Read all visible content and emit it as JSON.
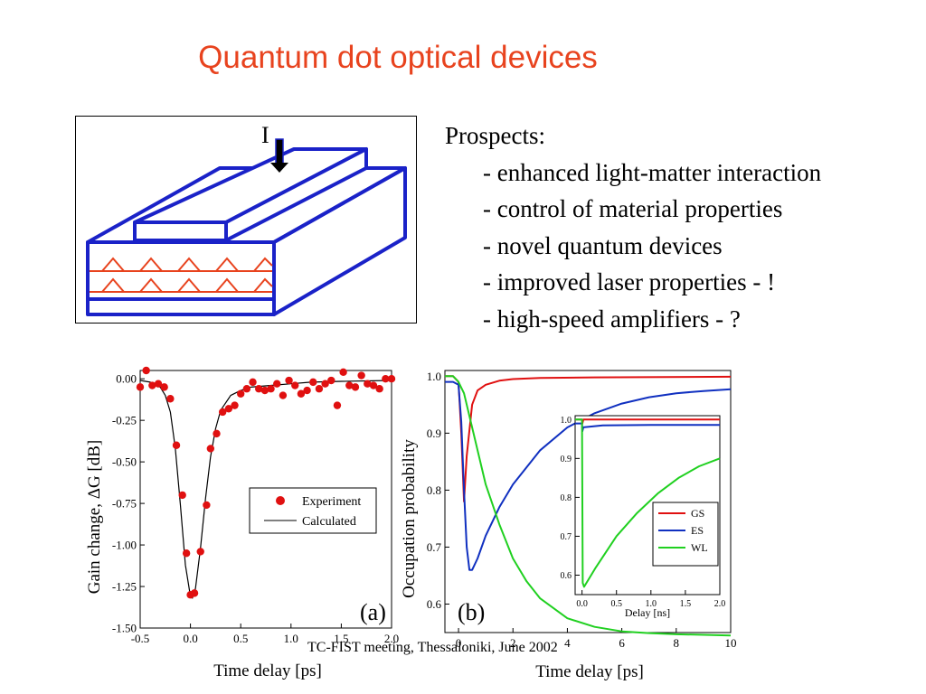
{
  "slide": {
    "title": "Quantum dot optical devices",
    "prospects": {
      "heading": "Prospects:",
      "items": [
        "- enhanced light-matter interaction",
        "- control of material properties",
        "- novel quantum devices",
        "- improved laser properties - !",
        "- high-speed amplifiers - ?"
      ]
    },
    "device": {
      "current_label": "I"
    },
    "footer": "TC-FIST meeting, Thessaloniki, June 2002"
  },
  "colors": {
    "title": "#e8431e",
    "device_outline": "#1a22c8",
    "dot_layers": "#e8431e",
    "experiment": "#e01010",
    "gs": "#e01010",
    "es": "#1030c0",
    "wl": "#20d020"
  },
  "chart_data": [
    {
      "type": "scatter",
      "panel_label": "(a)",
      "xlabel": "Time delay [ps]",
      "ylabel": "Gain change, ΔG [dB]",
      "xlim": [
        -0.5,
        2.0
      ],
      "ylim": [
        -1.5,
        0.05
      ],
      "xticks": [
        -0.5,
        0.0,
        0.5,
        1.0,
        1.5,
        2.0
      ],
      "xtick_labels": [
        "-0.5",
        "0.0",
        "0.5",
        "1.0",
        "1.5",
        "2.0"
      ],
      "yticks": [
        0.0,
        -0.25,
        -0.5,
        -0.75,
        -1.0,
        -1.25,
        -1.5
      ],
      "ytick_labels": [
        "0.00",
        "-0.25",
        "-0.50",
        "-0.75",
        "-1.00",
        "-1.25",
        "-1.50"
      ],
      "legend": {
        "placement": "right",
        "entries": [
          "Experiment",
          "Calculated"
        ]
      },
      "series": [
        {
          "name": "Experiment",
          "x": [
            -0.5,
            -0.44,
            -0.38,
            -0.32,
            -0.26,
            -0.2,
            -0.14,
            -0.08,
            -0.04,
            0.0,
            0.04,
            0.1,
            0.16,
            0.2,
            0.26,
            0.32,
            0.38,
            0.44,
            0.5,
            0.56,
            0.62,
            0.68,
            0.74,
            0.8,
            0.86,
            0.92,
            0.98,
            1.04,
            1.1,
            1.16,
            1.22,
            1.28,
            1.34,
            1.4,
            1.46,
            1.52,
            1.58,
            1.64,
            1.7,
            1.76,
            1.82,
            1.88,
            1.94,
            2.0
          ],
          "y": [
            -0.05,
            0.05,
            -0.04,
            -0.03,
            -0.05,
            -0.12,
            -0.4,
            -0.7,
            -1.05,
            -1.3,
            -1.29,
            -1.04,
            -0.76,
            -0.42,
            -0.33,
            -0.2,
            -0.18,
            -0.16,
            -0.09,
            -0.06,
            -0.02,
            -0.06,
            -0.07,
            -0.06,
            -0.03,
            -0.1,
            -0.01,
            -0.04,
            -0.09,
            -0.07,
            -0.02,
            -0.06,
            -0.03,
            -0.01,
            -0.16,
            0.04,
            -0.04,
            -0.05,
            0.02,
            -0.03,
            -0.04,
            -0.06,
            0.0,
            0.0
          ]
        },
        {
          "name": "Calculated",
          "x": [
            -0.5,
            -0.4,
            -0.3,
            -0.25,
            -0.2,
            -0.15,
            -0.1,
            -0.05,
            0.0,
            0.02,
            0.05,
            0.1,
            0.15,
            0.2,
            0.25,
            0.3,
            0.4,
            0.5,
            0.6,
            0.8,
            1.0,
            1.2,
            1.5,
            2.0
          ],
          "y": [
            -0.01,
            -0.02,
            -0.05,
            -0.1,
            -0.2,
            -0.42,
            -0.76,
            -1.12,
            -1.31,
            -1.32,
            -1.26,
            -1.02,
            -0.72,
            -0.47,
            -0.3,
            -0.19,
            -0.1,
            -0.07,
            -0.05,
            -0.04,
            -0.03,
            -0.02,
            -0.015,
            -0.01
          ]
        }
      ]
    },
    {
      "type": "line",
      "panel_label": "(b)",
      "xlabel": "Time delay [ps]",
      "ylabel": "Occupation probability",
      "xlim": [
        -0.5,
        10
      ],
      "ylim": [
        0.55,
        1.01
      ],
      "xticks": [
        0,
        2,
        4,
        6,
        8,
        10
      ],
      "xtick_labels": [
        "0",
        "2",
        "4",
        "6",
        "8",
        "10"
      ],
      "yticks": [
        0.6,
        0.7,
        0.8,
        0.9,
        1.0
      ],
      "ytick_labels": [
        "0.6",
        "0.7",
        "0.8",
        "0.9",
        "1.0"
      ],
      "legend": {
        "placement": "inset",
        "entries": []
      },
      "series": [
        {
          "name": "GS",
          "x": [
            -0.5,
            -0.2,
            0.0,
            0.1,
            0.2,
            0.3,
            0.5,
            0.7,
            1.0,
            1.5,
            2.0,
            3.0,
            5.0,
            10.0
          ],
          "y": [
            1.0,
            1.0,
            0.99,
            0.9,
            0.78,
            0.86,
            0.95,
            0.975,
            0.985,
            0.992,
            0.995,
            0.997,
            0.998,
            0.999
          ]
        },
        {
          "name": "ES",
          "x": [
            -0.5,
            -0.2,
            0.0,
            0.1,
            0.2,
            0.3,
            0.4,
            0.5,
            0.7,
            1.0,
            1.5,
            2.0,
            3.0,
            4.0,
            5.0,
            6.0,
            7.0,
            8.0,
            9.0,
            10.0
          ],
          "y": [
            0.99,
            0.99,
            0.985,
            0.92,
            0.8,
            0.7,
            0.66,
            0.66,
            0.68,
            0.72,
            0.77,
            0.81,
            0.87,
            0.91,
            0.935,
            0.952,
            0.963,
            0.97,
            0.974,
            0.977
          ]
        },
        {
          "name": "WL",
          "x": [
            -0.5,
            -0.2,
            0.0,
            0.2,
            0.5,
            1.0,
            1.5,
            2.0,
            2.5,
            3.0,
            4.0,
            5.0,
            6.0,
            7.0,
            8.0,
            9.0,
            10.0
          ],
          "y": [
            1.0,
            1.0,
            0.99,
            0.97,
            0.91,
            0.81,
            0.74,
            0.68,
            0.64,
            0.61,
            0.575,
            0.56,
            0.552,
            0.549,
            0.547,
            0.546,
            0.545
          ]
        }
      ]
    },
    {
      "type": "line",
      "panel_label": "",
      "inset": true,
      "xlabel": "Delay [ns]",
      "ylabel": "",
      "xlim": [
        -0.1,
        2.0
      ],
      "ylim": [
        0.55,
        1.01
      ],
      "xticks": [
        0.0,
        0.5,
        1.0,
        1.5,
        2.0
      ],
      "xtick_labels": [
        "0.0",
        "0.5",
        "1.0",
        "1.5",
        "2.0"
      ],
      "yticks": [
        0.6,
        0.7,
        0.8,
        0.9,
        1.0
      ],
      "ytick_labels": [
        "0.6",
        "0.7",
        "0.8",
        "0.9",
        "1.0"
      ],
      "legend": {
        "placement": "bottom-right",
        "entries": [
          "GS",
          "ES",
          "WL"
        ]
      },
      "series": [
        {
          "name": "GS",
          "x": [
            -0.1,
            0.0,
            0.005,
            0.02,
            2.0
          ],
          "y": [
            1.0,
            1.0,
            0.99,
            1.0,
            1.0
          ]
        },
        {
          "name": "ES",
          "x": [
            -0.1,
            0.0,
            0.005,
            0.02,
            0.3,
            1.0,
            2.0
          ],
          "y": [
            0.99,
            0.99,
            0.97,
            0.98,
            0.985,
            0.986,
            0.986
          ]
        },
        {
          "name": "WL",
          "x": [
            -0.1,
            0.0,
            0.01,
            0.03,
            0.2,
            0.5,
            0.8,
            1.1,
            1.4,
            1.7,
            2.0
          ],
          "y": [
            1.0,
            1.0,
            0.58,
            0.57,
            0.62,
            0.7,
            0.76,
            0.81,
            0.85,
            0.88,
            0.9
          ]
        }
      ]
    }
  ]
}
